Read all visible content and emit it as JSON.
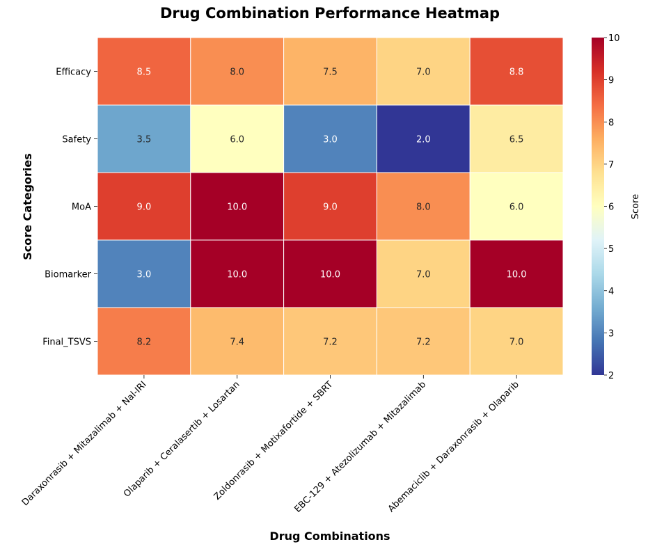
{
  "chart_data": {
    "type": "heatmap",
    "title": "Drug Combination Performance Heatmap",
    "xlabel": "Drug Combinations",
    "ylabel": "Score Categories",
    "x_categories": [
      "Daraxonrasib + Mitazalimab + Nal-IRI",
      "Olaparib + Ceralasertib + Losartan",
      "Zoldonrasib + Motixafortide + SBRT",
      "EBC-129 + Atezolizumab + Mitazalimab",
      "Abemaciclib + Daraxonrasib + Olaparib"
    ],
    "y_categories": [
      "Efficacy",
      "Safety",
      "MoA",
      "Biomarker",
      "Final_TSVS"
    ],
    "values": [
      [
        8.5,
        8.0,
        7.5,
        7.0,
        8.8
      ],
      [
        3.5,
        6.0,
        3.0,
        2.0,
        6.5
      ],
      [
        9.0,
        10.0,
        9.0,
        8.0,
        6.0
      ],
      [
        3.0,
        10.0,
        10.0,
        7.0,
        10.0
      ],
      [
        8.2,
        7.4,
        7.2,
        7.2,
        7.0
      ]
    ],
    "cell_labels": [
      [
        "8.5",
        "8.0",
        "7.5",
        "7.0",
        "8.8"
      ],
      [
        "3.5",
        "6.0",
        "3.0",
        "2.0",
        "6.5"
      ],
      [
        "9.0",
        "10.0",
        "9.0",
        "8.0",
        "6.0"
      ],
      [
        "3.0",
        "10.0",
        "10.0",
        "7.0",
        "10.0"
      ],
      [
        "8.2",
        "7.4",
        "7.2",
        "7.2",
        "7.0"
      ]
    ],
    "colormap": "RdYlBu_r",
    "colorbar": {
      "label": "Score",
      "range": [
        2,
        10
      ],
      "ticks": [
        "2",
        "3",
        "4",
        "5",
        "6",
        "7",
        "8",
        "9",
        "10"
      ]
    },
    "annotations": true,
    "grid": false
  }
}
